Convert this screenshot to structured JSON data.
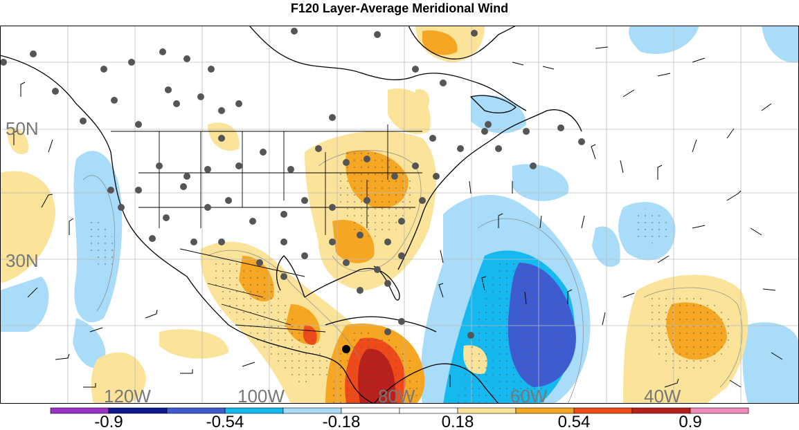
{
  "title": "F120 Layer-Average Meridional Wind",
  "lat_labels": [
    "50N",
    "30N"
  ],
  "lon_labels": [
    "120W",
    "100W",
    "80W",
    "60W",
    "40W"
  ],
  "colorbar": {
    "labels": [
      "-0.9",
      "-0.54",
      "-0.18",
      "0.18",
      "0.54",
      "0.9"
    ],
    "colors": [
      "#9a33c8",
      "#0a1a8a",
      "#3f5bd0",
      "#16b8f0",
      "#a8dcf8",
      "#ffffff",
      "#ffffff",
      "#fbe49a",
      "#f5a623",
      "#ef4a1a",
      "#b8201c",
      "#f08ab8"
    ]
  },
  "palette": {
    "land": "#ffffff",
    "coast": "#000000",
    "grid": "#bbbbbb",
    "station": "#555555"
  }
}
